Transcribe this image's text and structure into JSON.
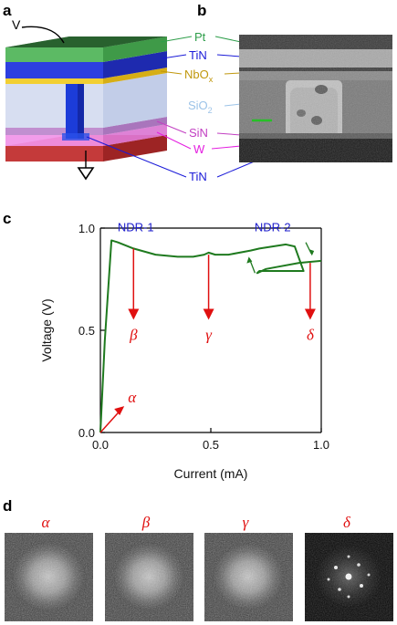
{
  "panels": {
    "a": "a",
    "b": "b",
    "c": "c",
    "d": "d"
  },
  "schematic": {
    "v_label": "V",
    "layers": [
      {
        "name": "Pt",
        "color": "#2e9e4a"
      },
      {
        "name": "TiN",
        "color": "#1a1ad8"
      },
      {
        "name": "NbO",
        "sub": "x",
        "color": "#c0970c"
      },
      {
        "name": "SiO",
        "sub": "2",
        "color": "#9cc3e8"
      },
      {
        "name": "SiN",
        "color": "#c23fc2"
      },
      {
        "name": "W",
        "color": "#e41ee0"
      },
      {
        "name": "TiN",
        "color": "#1a1ad8"
      }
    ]
  },
  "chart_data": {
    "type": "line",
    "xlabel": "Current (mA)",
    "ylabel": "Voltage (V)",
    "xlim": [
      0,
      1.0
    ],
    "ylim": [
      0,
      1.0
    ],
    "xticks": [
      "0.0",
      "0.5",
      "1.0"
    ],
    "yticks": [
      "0.0",
      "0.5",
      "1.0"
    ],
    "series": [
      {
        "color": "#1f7a1f",
        "x": [
          0.0,
          0.02,
          0.05,
          0.08,
          0.15,
          0.25,
          0.35,
          0.42,
          0.47,
          0.49,
          0.52,
          0.58,
          0.68,
          0.72,
          0.78,
          0.84,
          0.88,
          0.92,
          0.88,
          0.8,
          0.72,
          0.71,
          0.75,
          0.8,
          0.9,
          1.0
        ],
        "y": [
          0.0,
          0.45,
          0.94,
          0.93,
          0.9,
          0.87,
          0.86,
          0.86,
          0.87,
          0.88,
          0.87,
          0.87,
          0.89,
          0.9,
          0.91,
          0.92,
          0.91,
          0.79,
          0.79,
          0.79,
          0.79,
          0.78,
          0.8,
          0.81,
          0.83,
          0.84
        ]
      }
    ],
    "annotations": [
      {
        "text": "NDR-1",
        "x": 0.16,
        "y": 0.975
      },
      {
        "text": "NDR-2",
        "x": 0.78,
        "y": 0.975
      }
    ],
    "markers": [
      {
        "label": "α",
        "x": 0.05,
        "y_from": 0.0,
        "y_to": 0.12
      },
      {
        "label": "β",
        "x": 0.15,
        "y_from": 0.9,
        "y_to": 0.56
      },
      {
        "label": "γ",
        "x": 0.49,
        "y_from": 0.87,
        "y_to": 0.56
      },
      {
        "label": "δ",
        "x": 0.95,
        "y_from": 0.83,
        "y_to": 0.56
      }
    ],
    "arrow_color": "#e01010"
  },
  "diffraction": [
    {
      "label": "α"
    },
    {
      "label": "β"
    },
    {
      "label": "γ"
    },
    {
      "label": "δ"
    }
  ]
}
